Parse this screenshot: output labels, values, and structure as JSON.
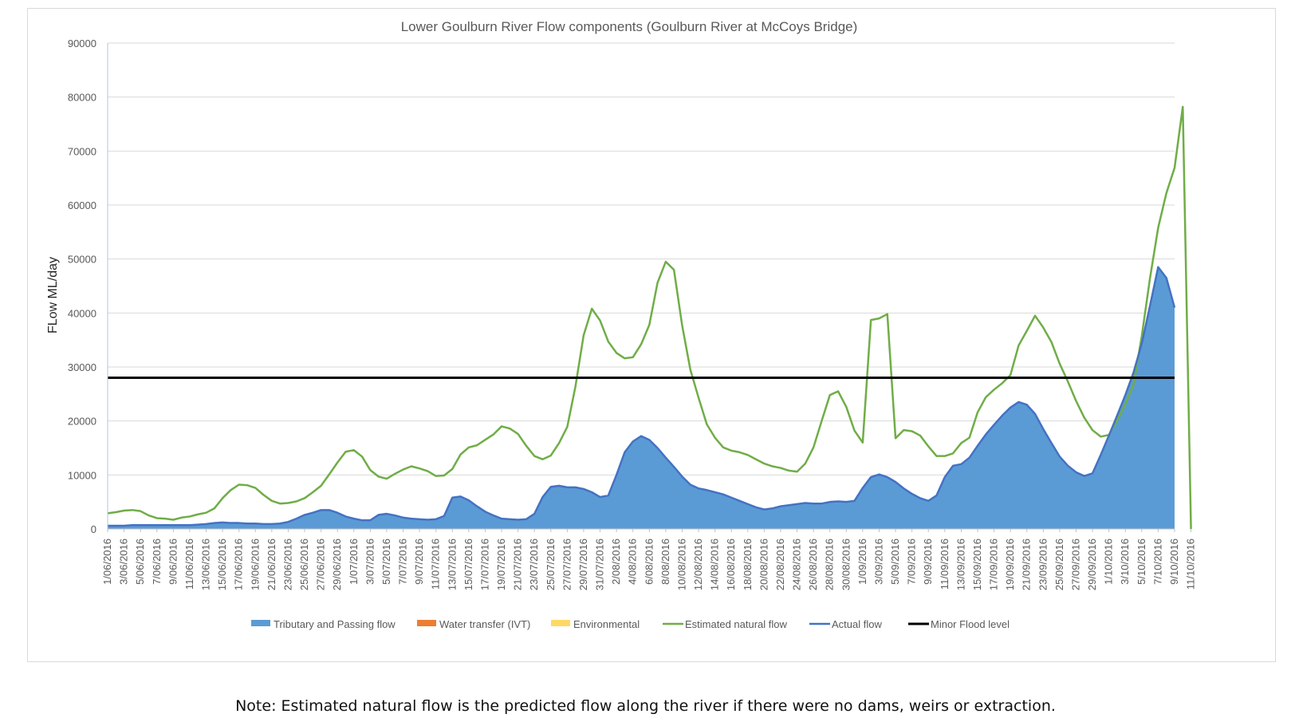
{
  "note": "Note: Estimated natural flow is the predicted flow along the river if there were no dams, weirs or extraction.",
  "colors": {
    "tributary": "#5b9bd5",
    "water_transfer": "#ed7d31",
    "environmental": "#ffd966",
    "natural": "#70ad47",
    "actual": "#4472c4",
    "flood": "#000000",
    "grid": "#d9d9d9",
    "text": "#595959"
  },
  "chart_data": {
    "type": "area",
    "title": "Lower Goulburn River Flow components (Goulburn River at McCoys Bridge)",
    "xlabel": "",
    "ylabel": "FLow ML/day",
    "ylim": [
      0,
      90000
    ],
    "yticks": [
      0,
      10000,
      20000,
      30000,
      40000,
      50000,
      60000,
      70000,
      80000,
      90000
    ],
    "grid": true,
    "legend_position": "bottom",
    "x_start": "1/06/2016",
    "x_tick_labels": [
      "1/06/2016",
      "3/06/2016",
      "5/06/2016",
      "7/06/2016",
      "9/06/2016",
      "11/06/2016",
      "13/06/2016",
      "15/06/2016",
      "17/06/2016",
      "19/06/2016",
      "21/06/2016",
      "23/06/2016",
      "25/06/2016",
      "27/06/2016",
      "29/06/2016",
      "1/07/2016",
      "3/07/2016",
      "5/07/2016",
      "7/07/2016",
      "9/07/2016",
      "11/07/2016",
      "13/07/2016",
      "15/07/2016",
      "17/07/2016",
      "19/07/2016",
      "21/07/2016",
      "23/07/2016",
      "25/07/2016",
      "27/07/2016",
      "29/07/2016",
      "31/07/2016",
      "2/08/2016",
      "4/08/2016",
      "6/08/2016",
      "8/08/2016",
      "10/08/2016",
      "12/08/2016",
      "14/08/2016",
      "16/08/2016",
      "18/08/2016",
      "20/08/2016",
      "22/08/2016",
      "24/08/2016",
      "26/08/2016",
      "28/08/2016",
      "30/08/2016",
      "1/09/2016",
      "3/09/2016",
      "5/09/2016",
      "7/09/2016",
      "9/09/2016",
      "11/09/2016",
      "13/09/2016",
      "15/09/2016",
      "17/09/2016",
      "19/09/2016",
      "21/09/2016",
      "23/09/2016",
      "25/09/2016",
      "27/09/2016",
      "29/09/2016",
      "1/10/2016",
      "3/10/2016",
      "5/10/2016",
      "7/10/2016",
      "9/10/2016",
      "11/10/2016"
    ],
    "series": [
      {
        "name": "Tributary and Passing flow",
        "kind": "area",
        "color": "#5b9bd5",
        "values": [
          600,
          600,
          600,
          700,
          700,
          700,
          700,
          700,
          700,
          700,
          700,
          800,
          900,
          1100,
          1200,
          1100,
          1100,
          1000,
          1000,
          900,
          900,
          1000,
          1300,
          1900,
          2600,
          3000,
          3500,
          3500,
          3000,
          2300,
          1900,
          1600,
          1600,
          2600,
          2800,
          2500,
          2100,
          1900,
          1800,
          1700,
          1800,
          2400,
          5800,
          6000,
          5300,
          4200,
          3200,
          2500,
          1900,
          1800,
          1700,
          1800,
          2800,
          5900,
          7800,
          8000,
          7700,
          7700,
          7400,
          6800,
          5900,
          6200,
          10000,
          14200,
          16200,
          17200,
          16500,
          15000,
          13200,
          11500,
          9700,
          8200,
          7500,
          7200,
          6800,
          6400,
          5800,
          5200,
          4600,
          4000,
          3600,
          3800,
          4200,
          4400,
          4600,
          4800,
          4700,
          4700,
          5000,
          5100,
          5000,
          5200,
          7600,
          9600,
          10100,
          9600,
          8700,
          7500,
          6500,
          5700,
          5200,
          6200,
          9600,
          11700,
          12000,
          13200,
          15400,
          17500,
          19300,
          21000,
          22500,
          23500,
          23000,
          21300,
          18500,
          15900,
          13400,
          11700,
          10500,
          9800,
          10300,
          13700,
          17300,
          21000,
          24800,
          29000,
          34300,
          41300,
          48500,
          46500,
          41000
        ]
      },
      {
        "name": "Water transfer (IVT)",
        "kind": "area",
        "color": "#ed7d31",
        "values": []
      },
      {
        "name": "Environmental",
        "kind": "area",
        "color": "#ffd966",
        "values": []
      },
      {
        "name": "Estimated natural flow",
        "kind": "line",
        "color": "#70ad47",
        "values": [
          2900,
          3100,
          3400,
          3500,
          3300,
          2500,
          2000,
          1900,
          1700,
          2100,
          2300,
          2700,
          3000,
          3800,
          5700,
          7200,
          8200,
          8100,
          7600,
          6300,
          5200,
          4700,
          4800,
          5100,
          5700,
          6800,
          8000,
          10100,
          12300,
          14300,
          14600,
          13400,
          10900,
          9700,
          9300,
          10200,
          11000,
          11600,
          11200,
          10700,
          9800,
          9900,
          11100,
          13800,
          15100,
          15500,
          16500,
          17500,
          19000,
          18600,
          17600,
          15400,
          13500,
          12900,
          13600,
          15900,
          18900,
          26400,
          35900,
          40800,
          38600,
          34700,
          32600,
          31600,
          31800,
          34200,
          37800,
          45600,
          49500,
          48000,
          37700,
          29500,
          24300,
          19400,
          16900,
          15100,
          14500,
          14200,
          13700,
          12900,
          12100,
          11600,
          11300,
          10800,
          10600,
          12100,
          15100,
          20000,
          24800,
          25500,
          22600,
          18200,
          16000,
          38700,
          39000,
          39800,
          16800,
          18300,
          18100,
          17300,
          15300,
          13500,
          13500,
          14000,
          15900,
          16900,
          21600,
          24400,
          25800,
          27000,
          28500,
          34000,
          36700,
          39500,
          37300,
          34600,
          30600,
          27300,
          23700,
          20600,
          18300,
          17100,
          17400,
          20100,
          23100,
          26800,
          35700,
          46400,
          55800,
          62200,
          66900,
          78200,
          0
        ]
      },
      {
        "name": "Actual flow",
        "kind": "line",
        "color": "#4472c4",
        "values": [
          600,
          600,
          600,
          700,
          700,
          700,
          700,
          700,
          700,
          700,
          700,
          800,
          900,
          1100,
          1200,
          1100,
          1100,
          1000,
          1000,
          900,
          900,
          1000,
          1300,
          1900,
          2600,
          3000,
          3500,
          3500,
          3000,
          2300,
          1900,
          1600,
          1600,
          2600,
          2800,
          2500,
          2100,
          1900,
          1800,
          1700,
          1800,
          2400,
          5800,
          6000,
          5300,
          4200,
          3200,
          2500,
          1900,
          1800,
          1700,
          1800,
          2800,
          5900,
          7800,
          8000,
          7700,
          7700,
          7400,
          6800,
          5900,
          6200,
          10000,
          14200,
          16200,
          17200,
          16500,
          15000,
          13200,
          11500,
          9700,
          8200,
          7500,
          7200,
          6800,
          6400,
          5800,
          5200,
          4600,
          4000,
          3600,
          3800,
          4200,
          4400,
          4600,
          4800,
          4700,
          4700,
          5000,
          5100,
          5000,
          5200,
          7600,
          9600,
          10100,
          9600,
          8700,
          7500,
          6500,
          5700,
          5200,
          6200,
          9600,
          11700,
          12000,
          13200,
          15400,
          17500,
          19300,
          21000,
          22500,
          23500,
          23000,
          21300,
          18500,
          15900,
          13400,
          11700,
          10500,
          9800,
          10300,
          13700,
          17300,
          21000,
          24800,
          29000,
          34300,
          41300,
          48500,
          46500,
          41000
        ]
      },
      {
        "name": "Minor Flood level",
        "kind": "hline",
        "color": "#000000",
        "value": 28000
      }
    ]
  }
}
